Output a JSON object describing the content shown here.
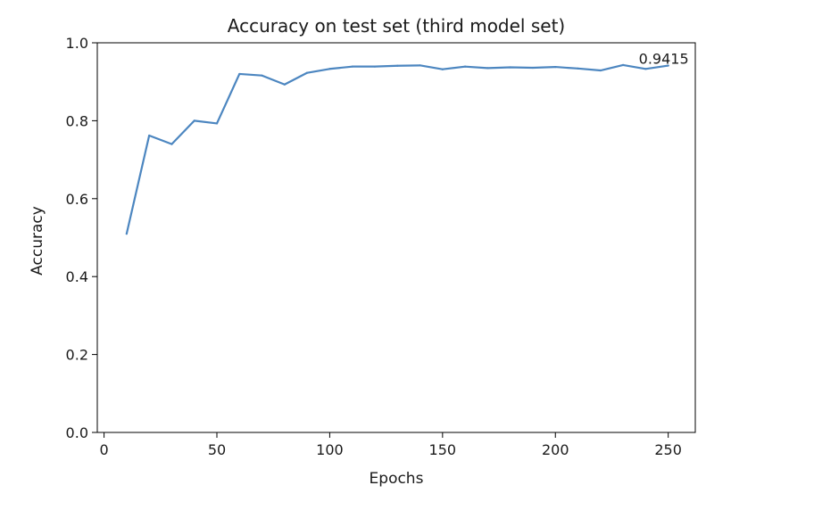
{
  "chart_data": {
    "type": "line",
    "title": "Accuracy on test set (third model set)",
    "xlabel": "Epochs",
    "ylabel": "Accuracy",
    "xlim": [
      -3,
      262
    ],
    "ylim": [
      0.0,
      1.0
    ],
    "xticks": [
      0,
      50,
      100,
      150,
      200,
      250
    ],
    "yticks": [
      0.0,
      0.2,
      0.4,
      0.6,
      0.8,
      1.0
    ],
    "xtick_labels": [
      "0",
      "50",
      "100",
      "150",
      "200",
      "250"
    ],
    "ytick_labels": [
      "0.0",
      "0.2",
      "0.4",
      "0.6",
      "0.8",
      "1.0"
    ],
    "grid": false,
    "line_color": "#4c86c0",
    "series": [
      {
        "x": [
          10,
          20,
          30,
          40,
          50,
          60,
          70,
          80,
          90,
          100,
          110,
          120,
          130,
          140,
          150,
          160,
          170,
          180,
          190,
          200,
          210,
          220,
          230,
          240,
          250
        ],
        "values": [
          0.51,
          0.762,
          0.74,
          0.8,
          0.793,
          0.92,
          0.916,
          0.893,
          0.923,
          0.933,
          0.939,
          0.939,
          0.941,
          0.942,
          0.932,
          0.939,
          0.935,
          0.937,
          0.936,
          0.938,
          0.934,
          0.929,
          0.943,
          0.933,
          0.9415
        ]
      }
    ],
    "annotations": [
      {
        "text": "0.9415",
        "x": 250,
        "y": 0.9415
      }
    ]
  }
}
